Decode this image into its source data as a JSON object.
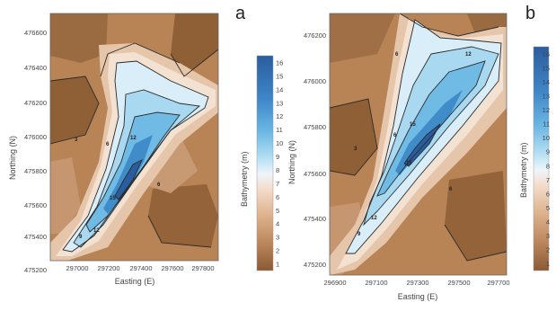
{
  "panels": [
    {
      "id": "a",
      "label": "a",
      "xlabel": "Easting (E)",
      "ylabel": "Northing (N)",
      "colorbar_label": "Bathymetry (m)",
      "x_ticks": [
        "297000",
        "297200",
        "297400",
        "297600",
        "297800"
      ],
      "y_ticks": [
        "476600",
        "476400",
        "476200",
        "476000",
        "475800",
        "475600",
        "475400",
        "475200"
      ],
      "colorbar_ticks": [
        "16",
        "15",
        "14",
        "13",
        "12",
        "11",
        "10",
        "9",
        "8",
        "7",
        "6",
        "5",
        "4",
        "3",
        "2",
        "1"
      ],
      "contour_labels": [
        "3",
        "6",
        "9",
        "12",
        "15"
      ]
    },
    {
      "id": "b",
      "label": "b",
      "xlabel": "Easting (E)",
      "ylabel": "Northing (N)",
      "colorbar_label": "Bathymetry (m)",
      "x_ticks": [
        "296900",
        "297100",
        "297300",
        "297500",
        "297700"
      ],
      "y_ticks": [
        "476200",
        "476000",
        "475800",
        "475600",
        "475400",
        "475200"
      ],
      "colorbar_ticks": [
        "16",
        "15",
        "14",
        "13",
        "12",
        "11",
        "10",
        "9",
        "8",
        "7",
        "6",
        "5",
        "4",
        "3",
        "2",
        "1"
      ],
      "contour_labels": [
        "3",
        "6",
        "9",
        "12",
        "15"
      ]
    }
  ],
  "colors": {
    "shallow_1": "#8a5a34",
    "shallow_3": "#b07a4e",
    "shallow_5": "#d4a882",
    "mid_7": "#f2dccb",
    "mid_9": "#eef5fa",
    "deep_11": "#a7d8ef",
    "deep_13": "#5fb0e0",
    "deep_16": "#2a5d9e"
  }
}
